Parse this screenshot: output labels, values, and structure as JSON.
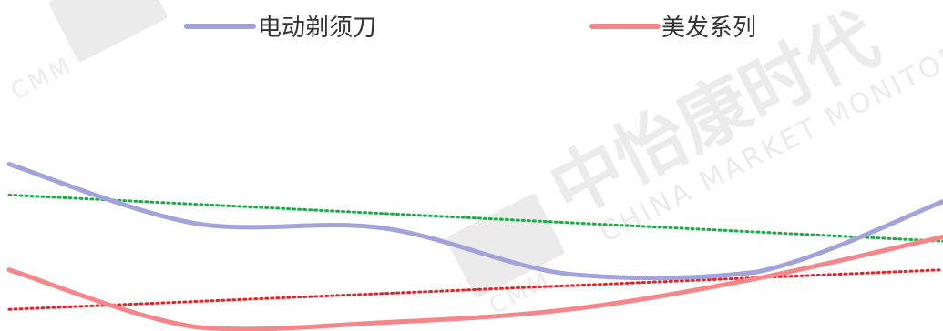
{
  "chart_data": {
    "type": "line",
    "x": [
      0,
      1,
      2,
      3,
      4,
      5
    ],
    "ylim": [
      0,
      100
    ],
    "grid": false,
    "legend_position": "top",
    "series": [
      {
        "name": "电动剃须刀",
        "color": "#a3a3dc",
        "values": [
          75,
          48,
          46,
          25,
          26,
          58
        ],
        "trend": {
          "start": 61,
          "end": 40,
          "color": "#1eaa4a"
        }
      },
      {
        "name": "美发系列",
        "color": "#f5868a",
        "values": [
          27,
          1,
          3,
          9,
          23,
          42
        ],
        "trend": {
          "start": 9,
          "end": 27,
          "color": "#e0262b"
        }
      }
    ]
  },
  "watermark": {
    "brand": "中怡康时代",
    "sub": "CHINA MARKET MONITOR",
    "logo": "CMM"
  }
}
